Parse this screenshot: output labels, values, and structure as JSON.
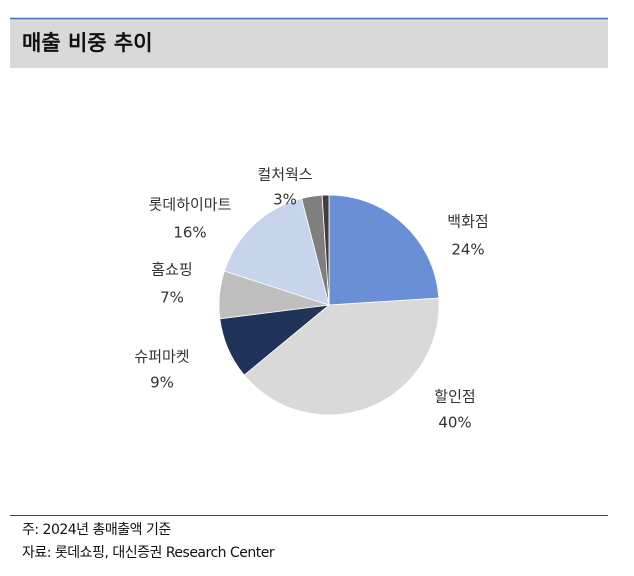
{
  "header": {
    "title": "매출 비중 추이"
  },
  "chart_data": {
    "type": "pie",
    "categories": [
      "백화점",
      "할인점",
      "슈퍼마켓",
      "홈쇼핑",
      "롯데하이마트",
      "컬처웍스",
      null
    ],
    "values": [
      24,
      40,
      9,
      7,
      16,
      3,
      1
    ],
    "value_labels": [
      "24%",
      "40%",
      "9%",
      "7%",
      "16%",
      "3%",
      null
    ],
    "colors": [
      "#6b8fd6",
      "#d9d9d9",
      "#203459",
      "#bfbfbf",
      "#c6d4ec",
      "#7f7f7f",
      "#3f3f3f"
    ]
  },
  "footer": {
    "note": "주: 2024년 총매출액 기준",
    "source": "자료: 롯데쇼핑, 대신증권 Research Center"
  }
}
